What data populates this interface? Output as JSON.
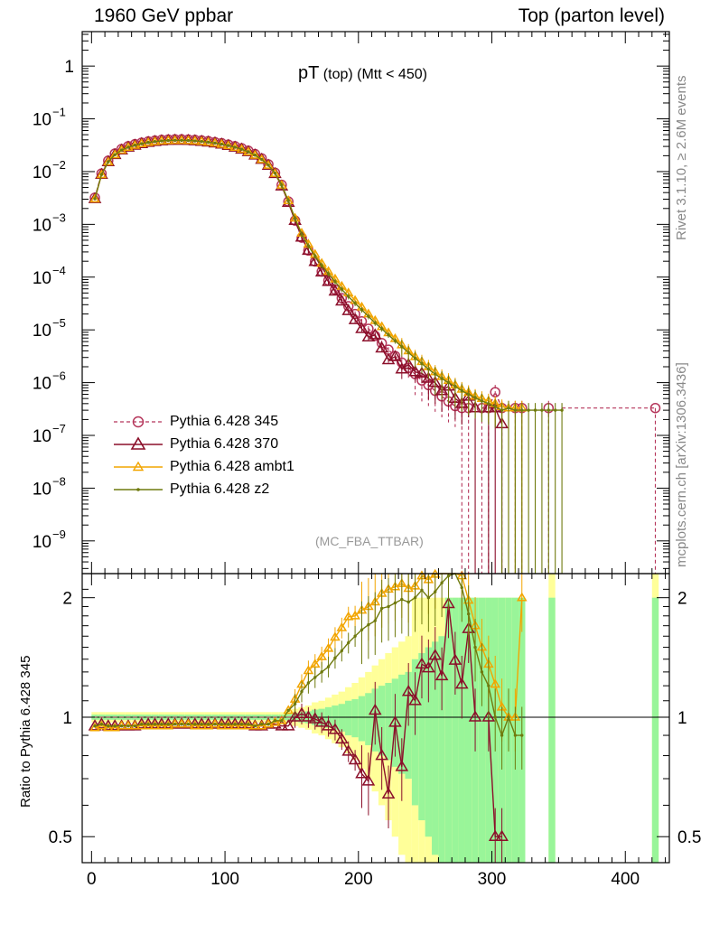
{
  "header": {
    "left": "1960 GeV ppbar",
    "right": "Top (parton level)"
  },
  "side": {
    "rivet": "Rivet 3.1.10, ≥ 2.6M events",
    "mcplots": "mcplots.cern.ch [arXiv:1306.3436]"
  },
  "plot_title": {
    "main": "pT",
    "sub": " (top) (Mtt < 450)"
  },
  "analysis": "(MC_FBA_TTBAR)",
  "ratio_ylabel": "Ratio to Pythia 6.428 345",
  "colors": {
    "p345": "#b5355a",
    "p370": "#8b0f2a",
    "ambt1": "#f2a500",
    "z2": "#6f7a0e",
    "band_yellow": "#ffff99",
    "band_green": "#99f599"
  },
  "chart_data": {
    "type": "line",
    "x_axis": {
      "label": "",
      "range": [
        -7,
        433
      ],
      "ticks": [
        0,
        100,
        200,
        300,
        400
      ]
    },
    "main": {
      "yscale": "log",
      "yrange": [
        2.4e-10,
        4.5
      ],
      "ytick_labels": [
        {
          "v": 1,
          "label": "1"
        },
        {
          "v": 0.1,
          "label": "10",
          "exp": "−1"
        },
        {
          "v": 0.01,
          "label": "10",
          "exp": "−2"
        },
        {
          "v": 0.001,
          "label": "10",
          "exp": "−3"
        },
        {
          "v": 0.0001,
          "label": "10",
          "exp": "−4"
        },
        {
          "v": 1e-05,
          "label": "10",
          "exp": "−5"
        },
        {
          "v": 1e-06,
          "label": "10",
          "exp": "−6"
        },
        {
          "v": 1e-07,
          "label": "10",
          "exp": "−7"
        },
        {
          "v": 1e-08,
          "label": "10",
          "exp": "−8"
        },
        {
          "v": 1e-09,
          "label": "10",
          "exp": "−9"
        }
      ],
      "x": [
        2.5,
        7.5,
        12.5,
        17.5,
        22.5,
        27.5,
        32.5,
        37.5,
        42.5,
        47.5,
        52.5,
        57.5,
        62.5,
        67.5,
        72.5,
        77.5,
        82.5,
        87.5,
        92.5,
        97.5,
        102.5,
        107.5,
        112.5,
        117.5,
        122.5,
        127.5,
        132.5,
        137.5,
        142.5,
        147.5,
        152.5,
        157.5,
        162.5,
        167.5,
        172.5,
        177.5,
        182.5,
        187.5,
        192.5,
        197.5,
        202.5,
        207.5,
        212.5,
        217.5,
        222.5,
        227.5,
        232.5,
        237.5,
        242.5,
        247.5,
        252.5,
        257.5,
        262.5,
        267.5,
        272.5,
        277.5,
        282.5,
        287.5,
        292.5,
        297.5,
        302.5,
        307.5,
        312.5,
        317.5,
        322.5,
        327.5,
        332.5,
        337.5,
        342.5,
        347.5,
        352.5
      ],
      "series": [
        {
          "name": "Pythia 6.428 345",
          "key": "p345",
          "marker": "circle",
          "dashed": true,
          "y": [
            0.0032,
            0.0092,
            0.0161,
            0.022,
            0.0268,
            0.0303,
            0.033,
            0.0352,
            0.0372,
            0.0387,
            0.0398,
            0.0405,
            0.0408,
            0.0408,
            0.0405,
            0.0398,
            0.0389,
            0.0377,
            0.0362,
            0.0345,
            0.0325,
            0.0302,
            0.0277,
            0.0248,
            0.0215,
            0.0178,
            0.0137,
            0.0095,
            0.0056,
            0.0027,
            0.00118,
            0.00056,
            0.00032,
            0.000198,
            0.000128,
            8.6e-05,
            5.8e-05,
            4e-05,
            2.8e-05,
            2e-05,
            1.45e-05,
            1.05e-05,
            7.7e-06,
            5.6e-06,
            4.2e-06,
            3.2e-06,
            2.4e-06,
            1.9e-06,
            1.45e-06,
            1.1e-06,
            9e-07,
            7e-07,
            5.5e-07,
            4.4e-07,
            3.6e-07,
            3.3e-07,
            3.3e-07,
            null,
            3.3e-07,
            3.3e-07,
            6.6e-07,
            3.3e-07,
            null,
            3.3e-07,
            3.3e-07,
            null,
            null,
            null,
            3.3e-07,
            null,
            null
          ],
          "tail_x": [
            422.5
          ],
          "tail_y": [
            3.3e-07
          ]
        },
        {
          "name": "Pythia 6.428 370",
          "key": "p370",
          "marker": "triangle",
          "dashed": false,
          "y": [
            0.00305,
            0.0088,
            0.0153,
            0.0209,
            0.0255,
            0.0289,
            0.0315,
            0.0337,
            0.0356,
            0.037,
            0.0381,
            0.0388,
            0.0391,
            0.0391,
            0.0388,
            0.0381,
            0.0372,
            0.0361,
            0.0347,
            0.033,
            0.0311,
            0.0289,
            0.0265,
            0.0237,
            0.0205,
            0.017,
            0.0131,
            0.0091,
            0.0053,
            0.0026,
            0.00118,
            0.00057,
            0.00032,
            0.000196,
            0.000124,
            8.2e-05,
            5.4e-05,
            3.5e-05,
            2.3e-05,
            1.55e-05,
            1.05e-05,
            7.3e-06,
            8e-06,
            4.5e-06,
            2.7e-06,
            3.1e-06,
            1.8e-06,
            2.2e-06,
            1.6e-06,
            1.5e-06,
            1.2e-06,
            1e-06,
            7e-07,
            8.5e-07,
            5e-07,
            4e-07,
            5.5e-07,
            3.3e-07,
            null,
            3.3e-07,
            3.3e-07,
            1.65e-07,
            null,
            null,
            null,
            null,
            null,
            null,
            null,
            null,
            null
          ]
        },
        {
          "name": "Pythia 6.428 ambt1",
          "key": "ambt1",
          "marker": "triangle",
          "dashed": false,
          "y": [
            0.00302,
            0.0087,
            0.0152,
            0.0208,
            0.0254,
            0.0288,
            0.0314,
            0.0336,
            0.0355,
            0.0369,
            0.038,
            0.0387,
            0.039,
            0.039,
            0.0387,
            0.038,
            0.0371,
            0.036,
            0.0346,
            0.0329,
            0.031,
            0.0288,
            0.0264,
            0.0236,
            0.0204,
            0.0169,
            0.0131,
            0.0092,
            0.0055,
            0.0028,
            0.00131,
            0.00068,
            0.00042,
            0.00027,
            0.000182,
            0.000128,
            9.2e-05,
            6.7e-05,
            5e-05,
            3.6e-05,
            2.7e-05,
            2e-05,
            1.5e-05,
            1.15e-05,
            8.8e-06,
            6.8e-06,
            5.2e-06,
            4e-06,
            3.1e-06,
            2.5e-06,
            2e-06,
            1.6e-06,
            1.3e-06,
            1.1e-06,
            9e-07,
            7.5e-07,
            6.5e-07,
            5.5e-07,
            5e-07,
            4.5e-07,
            4e-07,
            3.5e-07,
            3.3e-07,
            3.3e-07,
            3.3e-07,
            null,
            null,
            null,
            null,
            null,
            null
          ]
        },
        {
          "name": "Pythia 6.428 z2",
          "key": "z2",
          "marker": "dot",
          "dashed": false,
          "y": [
            0.00305,
            0.0088,
            0.0153,
            0.0209,
            0.0255,
            0.0289,
            0.0315,
            0.0337,
            0.0356,
            0.037,
            0.0381,
            0.0388,
            0.0391,
            0.0391,
            0.0388,
            0.0381,
            0.0372,
            0.0361,
            0.0347,
            0.033,
            0.0311,
            0.0289,
            0.0265,
            0.0237,
            0.0205,
            0.017,
            0.0132,
            0.0093,
            0.0055,
            0.0028,
            0.00128,
            0.00065,
            0.00039,
            0.00025,
            0.000166,
            0.000115,
            8.2e-05,
            5.9e-05,
            4.3e-05,
            3.2e-05,
            2.4e-05,
            1.8e-05,
            1.35e-05,
            1.05e-05,
            8e-06,
            6.2e-06,
            4.8e-06,
            3.7e-06,
            2.9e-06,
            2.3e-06,
            1.8e-06,
            1.45e-06,
            1.2e-06,
            1e-06,
            8.5e-07,
            7e-07,
            6e-07,
            5.2e-07,
            4.5e-07,
            4e-07,
            3.5e-07,
            3e-07,
            3.3e-07,
            3e-07,
            3e-07,
            3e-07,
            3e-07,
            3e-07,
            3e-07,
            3e-07,
            3e-07
          ]
        }
      ]
    },
    "ratio": {
      "yscale": "log",
      "yrange": [
        0.43,
        2.3
      ],
      "ytick_labels": [
        {
          "v": 0.5,
          "label": "0.5"
        },
        {
          "v": 1,
          "label": "1"
        },
        {
          "v": 2,
          "label": "2"
        }
      ],
      "x": [
        2.5,
        7.5,
        12.5,
        17.5,
        22.5,
        27.5,
        32.5,
        37.5,
        42.5,
        47.5,
        52.5,
        57.5,
        62.5,
        67.5,
        72.5,
        77.5,
        82.5,
        87.5,
        92.5,
        97.5,
        102.5,
        107.5,
        112.5,
        117.5,
        122.5,
        127.5,
        132.5,
        137.5,
        142.5,
        147.5,
        152.5,
        157.5,
        162.5,
        167.5,
        172.5,
        177.5,
        182.5,
        187.5,
        192.5,
        197.5,
        202.5,
        207.5,
        212.5,
        217.5,
        222.5,
        227.5,
        232.5,
        237.5,
        242.5,
        247.5,
        252.5,
        257.5,
        262.5,
        267.5,
        272.5,
        277.5,
        282.5,
        287.5,
        292.5,
        297.5,
        302.5,
        307.5,
        312.5,
        317.5,
        322.5
      ],
      "band_yellow": [
        0.03,
        0.03,
        0.03,
        0.03,
        0.03,
        0.03,
        0.03,
        0.03,
        0.03,
        0.03,
        0.03,
        0.03,
        0.03,
        0.03,
        0.03,
        0.03,
        0.03,
        0.03,
        0.03,
        0.03,
        0.03,
        0.03,
        0.03,
        0.03,
        0.03,
        0.03,
        0.03,
        0.03,
        0.03,
        0.035,
        0.05,
        0.06,
        0.07,
        0.09,
        0.1,
        0.12,
        0.14,
        0.16,
        0.19,
        0.22,
        0.26,
        0.3,
        0.35,
        0.4,
        0.45,
        0.5,
        0.55,
        0.6,
        1.0,
        1.0,
        1.0,
        1.0,
        1.0,
        1.0,
        1.0,
        1.0,
        1.0,
        1.0,
        1.0,
        1.0,
        1.0,
        1.0,
        1.0,
        1.0,
        1.0
      ],
      "band_green": [
        0.015,
        0.015,
        0.015,
        0.015,
        0.015,
        0.015,
        0.015,
        0.015,
        0.015,
        0.015,
        0.015,
        0.015,
        0.015,
        0.015,
        0.015,
        0.015,
        0.015,
        0.015,
        0.015,
        0.015,
        0.015,
        0.015,
        0.015,
        0.015,
        0.015,
        0.015,
        0.015,
        0.015,
        0.015,
        0.018,
        0.025,
        0.03,
        0.035,
        0.045,
        0.05,
        0.06,
        0.07,
        0.08,
        0.1,
        0.11,
        0.13,
        0.15,
        0.18,
        0.2,
        0.22,
        0.25,
        0.28,
        0.3,
        0.4,
        0.45,
        0.5,
        0.55,
        0.6,
        1.0,
        1.0,
        1.0,
        1.0,
        1.0,
        1.0,
        1.0,
        1.0,
        1.0,
        1.0,
        1.0,
        1.0
      ],
      "series": [
        {
          "name": "Pythia 6.428 370",
          "key": "p370",
          "marker": "triangle",
          "y": [
            0.95,
            0.96,
            0.95,
            0.95,
            0.95,
            0.95,
            0.95,
            0.96,
            0.96,
            0.96,
            0.96,
            0.96,
            0.96,
            0.96,
            0.96,
            0.96,
            0.96,
            0.96,
            0.96,
            0.96,
            0.96,
            0.96,
            0.96,
            0.96,
            0.95,
            0.95,
            0.96,
            0.96,
            0.95,
            0.95,
            1.0,
            1.02,
            1.0,
            0.99,
            0.97,
            0.95,
            0.93,
            0.88,
            0.82,
            0.78,
            0.72,
            0.69,
            1.04,
            0.8,
            0.64,
            0.97,
            0.75,
            1.16,
            1.1,
            1.36,
            1.33,
            1.43,
            1.27,
            1.93,
            1.39,
            1.21,
            1.67,
            1.0,
            null,
            1.0,
            0.5,
            0.5,
            null,
            null,
            null
          ]
        },
        {
          "name": "Pythia 6.428 ambt1",
          "key": "ambt1",
          "marker": "triangle",
          "y": [
            0.94,
            0.95,
            0.94,
            0.94,
            0.95,
            0.95,
            0.95,
            0.95,
            0.95,
            0.95,
            0.95,
            0.95,
            0.96,
            0.96,
            0.96,
            0.95,
            0.95,
            0.95,
            0.96,
            0.95,
            0.95,
            0.95,
            0.95,
            0.95,
            0.95,
            0.95,
            0.96,
            0.97,
            0.98,
            1.04,
            1.11,
            1.21,
            1.31,
            1.36,
            1.42,
            1.49,
            1.59,
            1.68,
            1.79,
            1.8,
            1.86,
            1.9,
            1.95,
            2.05,
            2.1,
            2.13,
            2.17,
            2.11,
            2.14,
            2.27,
            2.22,
            2.29,
            2.36,
            2.5,
            2.5,
            2.27,
            1.97,
            1.7,
            1.5,
            1.36,
            1.21,
            1.06,
            1.0,
            1.0,
            2.0
          ]
        },
        {
          "name": "Pythia 6.428 z2",
          "key": "z2",
          "marker": "dot",
          "y": [
            0.95,
            0.96,
            0.95,
            0.95,
            0.95,
            0.95,
            0.95,
            0.96,
            0.96,
            0.96,
            0.96,
            0.96,
            0.96,
            0.96,
            0.96,
            0.96,
            0.96,
            0.96,
            0.96,
            0.96,
            0.96,
            0.96,
            0.96,
            0.96,
            0.95,
            0.96,
            0.96,
            0.98,
            0.98,
            1.04,
            1.08,
            1.16,
            1.22,
            1.26,
            1.3,
            1.34,
            1.41,
            1.47,
            1.54,
            1.6,
            1.66,
            1.71,
            1.75,
            1.88,
            1.9,
            1.94,
            1.98,
            1.95,
            2.0,
            2.09,
            2.0,
            2.07,
            2.18,
            2.27,
            2.36,
            2.12,
            1.82,
            1.5,
            1.3,
            1.2,
            1.0,
            0.9,
            1.0,
            0.9,
            0.9
          ]
        }
      ]
    }
  }
}
